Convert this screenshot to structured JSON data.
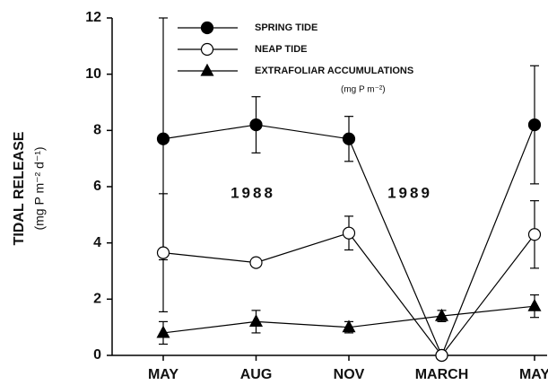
{
  "chart_data": {
    "type": "line",
    "y_label": "TIDAL RELEASE",
    "y_unit": "(mg P m⁻² d⁻¹)",
    "categories": [
      "MAY",
      "AUG",
      "NOV",
      "MARCH",
      "MAY"
    ],
    "series": [
      {
        "name": "SPRING TIDE",
        "color": "#000000",
        "marker": "filled-circle",
        "values": [
          7.7,
          8.2,
          7.7,
          0,
          8.2
        ],
        "errors": [
          4.3,
          1.0,
          0.8,
          0,
          2.1
        ]
      },
      {
        "name": "NEAP TIDE",
        "color": "#000000",
        "marker": "open-circle",
        "values": [
          3.65,
          3.3,
          4.35,
          0,
          4.3
        ],
        "errors": [
          2.1,
          null,
          0.6,
          0,
          1.2
        ]
      },
      {
        "name": "EXTRAFOLIAR ACCUMULATIONS",
        "color": "#000000",
        "marker": "filled-triangle",
        "values": [
          0.8,
          1.2,
          1.0,
          1.4,
          1.75
        ],
        "errors": [
          0.4,
          0.4,
          0.2,
          0.2,
          0.4
        ]
      }
    ],
    "legend_note": "(mg P m⁻²)",
    "annotations": [
      "1988",
      "1989"
    ],
    "ylim": [
      0,
      12
    ],
    "yticks": [
      0,
      2,
      4,
      6,
      8,
      10,
      12
    ]
  }
}
